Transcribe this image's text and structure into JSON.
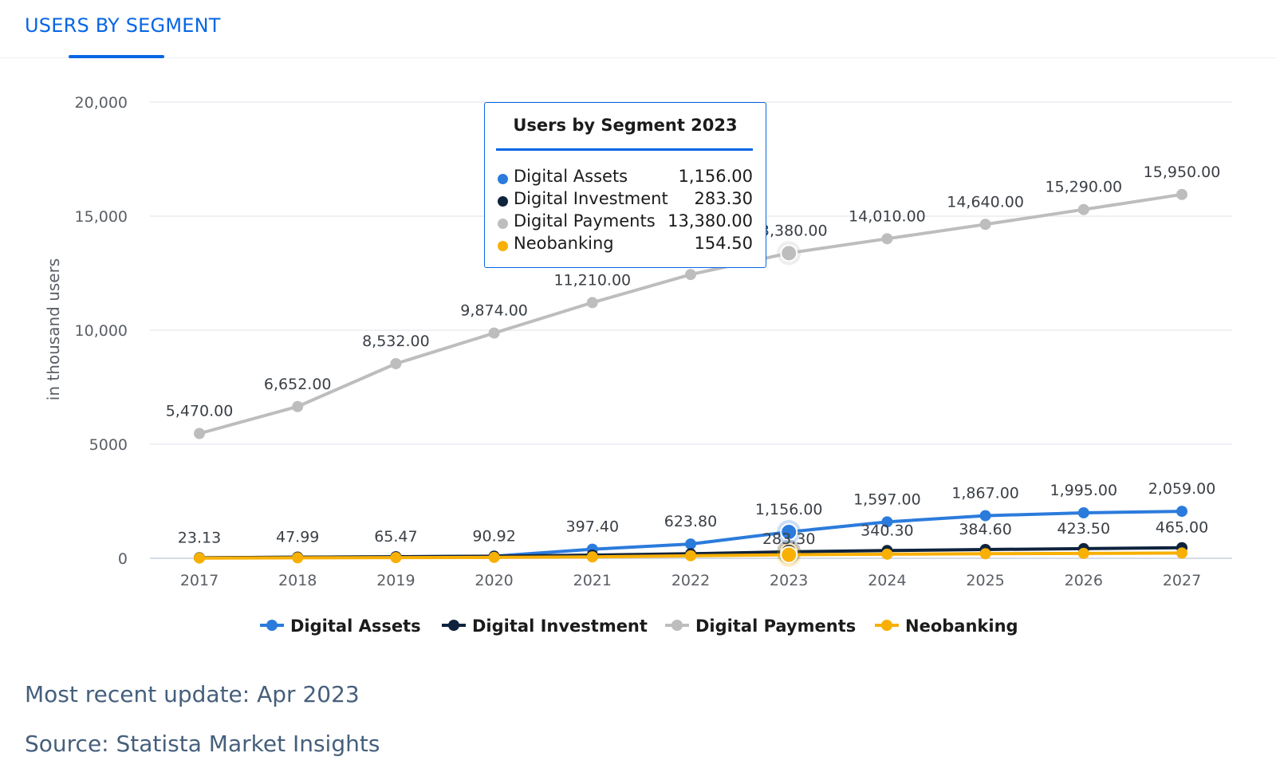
{
  "tab": {
    "title": "USERS BY SEGMENT"
  },
  "colors": {
    "accent": "#0666e5",
    "digital_assets": "#2b7bdc",
    "digital_investment": "#0f233d",
    "digital_payments": "#bdbdbd",
    "neobanking": "#f8b005"
  },
  "chart_data": {
    "type": "line",
    "ylabel": "in thousand users",
    "xlabel": "",
    "ylim": [
      0,
      20000
    ],
    "yticks": [
      "0",
      "5000",
      "10,000",
      "15,000",
      "20,000"
    ],
    "yticks_values": [
      0,
      5000,
      10000,
      15000,
      20000
    ],
    "categories": [
      "2017",
      "2018",
      "2019",
      "2020",
      "2021",
      "2022",
      "2023",
      "2024",
      "2025",
      "2026",
      "2027"
    ],
    "grid": true,
    "legend": "bottom",
    "series": [
      {
        "name": "Digital Assets",
        "color": "#2b7bdc",
        "values": [
          23.13,
          47.99,
          65.47,
          90.92,
          397.4,
          623.8,
          1156,
          1597,
          1867,
          1995,
          2059
        ],
        "labels": [
          "",
          "",
          "",
          "",
          "397.40",
          "623.80",
          "1,156.00",
          "1,597.00",
          "1,867.00",
          "1,995.00",
          "2,059.00"
        ]
      },
      {
        "name": "Digital Investment",
        "color": "#0f233d",
        "values": [
          23.13,
          47.99,
          65.47,
          90.92,
          140,
          200,
          283.3,
          340.3,
          384.6,
          423.5,
          465
        ],
        "labels": [
          "23.13",
          "47.99",
          "65.47",
          "90.92",
          "",
          "",
          "283.30",
          "340.30",
          "384.60",
          "423.50",
          "465.00"
        ]
      },
      {
        "name": "Digital Payments",
        "color": "#bdbdbd",
        "values": [
          5470,
          6652,
          8532,
          9874,
          11210,
          12440,
          13380,
          14010,
          14640,
          15290,
          15950
        ],
        "labels": [
          "5,470.00",
          "6,652.00",
          "8,532.00",
          "9,874.00",
          "11,210.00",
          "",
          "13,380.00",
          "14,010.00",
          "14,640.00",
          "15,290.00",
          "15,950.00"
        ]
      },
      {
        "name": "Neobanking",
        "color": "#f8b005",
        "values": [
          10,
          20,
          30,
          40,
          60,
          110,
          154.5,
          180,
          200,
          215,
          230
        ],
        "labels": [
          "",
          "",
          "",
          "",
          "",
          "",
          "",
          "",
          "",
          "",
          ""
        ]
      }
    ],
    "highlight_index": 6
  },
  "tooltip": {
    "title": "Users by Segment 2023",
    "rows": [
      {
        "name": "Digital Assets",
        "value": "1,156.00",
        "color": "#2b7bdc"
      },
      {
        "name": "Digital Investment",
        "value": "283.30",
        "color": "#0f233d"
      },
      {
        "name": "Digital Payments",
        "value": "13,380.00",
        "color": "#bdbdbd"
      },
      {
        "name": "Neobanking",
        "value": "154.50",
        "color": "#f8b005"
      }
    ]
  },
  "footer": {
    "update": "Most recent update: Apr 2023",
    "source": "Source: Statista Market Insights"
  }
}
